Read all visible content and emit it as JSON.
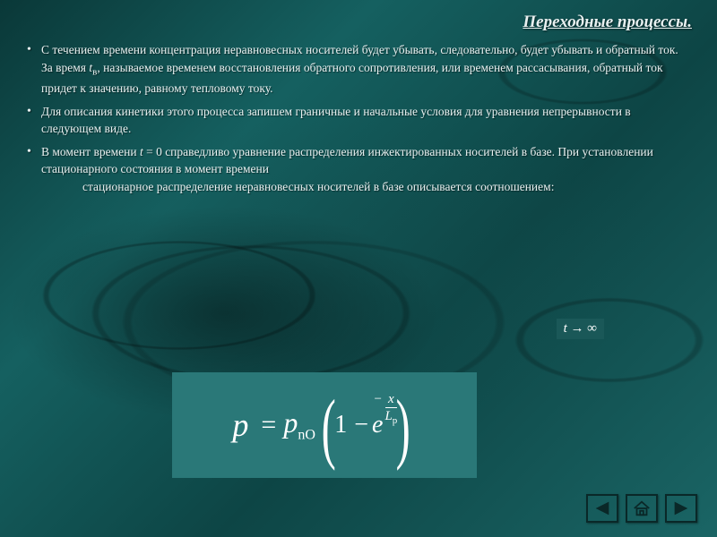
{
  "title": "Переходные процессы.",
  "bullets": [
    {
      "html": "С течением времени концентрация неравновесных носителей будет убывать, следовательно, будет убывать и обратный ток. За время <i>t</i><span class='sub'>в</span>, называемое временем восстановления обратного сопротивления, или временем рассасывания, обратный ток придет к значению, равному тепловому току."
    },
    {
      "html": "Для описания кинетики этого процесса запишем граничные и начальные условия для уравнения непрерывности в следующем виде."
    },
    {
      "html": "В момент времени <i>t</i> = 0 справедливо уравнение распределения инжектированных носителей в базе. При установлении стационарного состояния в момент времени <span class='indent' style='display:block'>стационарное распределение неравновесных носителей в базе описывается соотношением:</span>"
    }
  ],
  "equation_small": {
    "text": "t → ∞"
  },
  "equation_main": {
    "lhs": "p",
    "rhs_symbol": "p",
    "rhs_subscript": "nO",
    "inner_one": "1",
    "exp_base": "e",
    "frac_num": "x",
    "frac_den_sym": "L",
    "frac_den_sub": "p"
  },
  "nav": {
    "prev": "previous-slide",
    "home": "home",
    "next": "next-slide"
  },
  "colors": {
    "title": "#d4f0e8",
    "text": "#e8f0f0",
    "eq_bg_small": "#1a5858",
    "eq_bg_main": "#2a7878",
    "nav_border": "#0a2828"
  }
}
